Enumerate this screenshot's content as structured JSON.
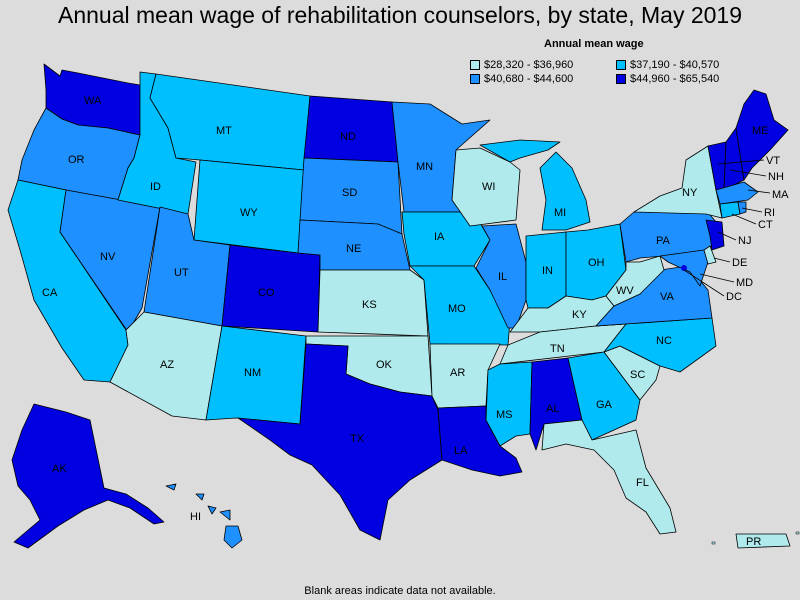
{
  "title": "Annual mean wage of rehabilitation counselors, by state, May 2019",
  "legend": {
    "title": "Annual mean wage",
    "bins": [
      {
        "label": "$28,320 - $36,960",
        "color": "#b0eaec"
      },
      {
        "label": "$37,190 - $40,570",
        "color": "#00bfff"
      },
      {
        "label": "$40,680 - $44,600",
        "color": "#1e90ff"
      },
      {
        "label": "$44,960 - $65,540",
        "color": "#0000e0"
      }
    ]
  },
  "footer": "Blank areas indicate data not available.",
  "states": {
    "WA": 3,
    "OR": 2,
    "CA": 1,
    "NV": 2,
    "ID": 1,
    "MT": 1,
    "WY": 1,
    "UT": 2,
    "AZ": 0,
    "NM": 1,
    "CO": 3,
    "ND": 3,
    "SD": 2,
    "NE": 2,
    "KS": 0,
    "OK": 0,
    "TX": 3,
    "MN": 2,
    "IA": 1,
    "MO": 1,
    "AR": 0,
    "LA": 3,
    "WI": 0,
    "IL": 2,
    "MS": 1,
    "AL": 3,
    "TN": 0,
    "KY": 0,
    "IN": 1,
    "OH": 1,
    "MI": 1,
    "GA": 1,
    "FL": 0,
    "SC": 0,
    "NC": 1,
    "VA": 2,
    "WV": 0,
    "PA": 2,
    "NY": 0,
    "VT": 3,
    "NH": 3,
    "ME": 3,
    "MA": 2,
    "RI": 2,
    "CT": 1,
    "NJ": 3,
    "DE": 0,
    "MD": 2,
    "DC": 3,
    "AK": 3,
    "HI": 2,
    "PR": 0
  },
  "state_labels": [
    "WA",
    "OR",
    "CA",
    "NV",
    "ID",
    "MT",
    "WY",
    "UT",
    "AZ",
    "NM",
    "CO",
    "ND",
    "SD",
    "NE",
    "KS",
    "OK",
    "TX",
    "MN",
    "IA",
    "MO",
    "AR",
    "LA",
    "WI",
    "IL",
    "MS",
    "AL",
    "TN",
    "KY",
    "IN",
    "OH",
    "MI",
    "GA",
    "FL",
    "SC",
    "NC",
    "VA",
    "WV",
    "PA",
    "NY",
    "VT",
    "NH",
    "ME",
    "MA",
    "RI",
    "CT",
    "NJ",
    "DE",
    "MD",
    "DC",
    "AK",
    "HI",
    "PR"
  ]
}
